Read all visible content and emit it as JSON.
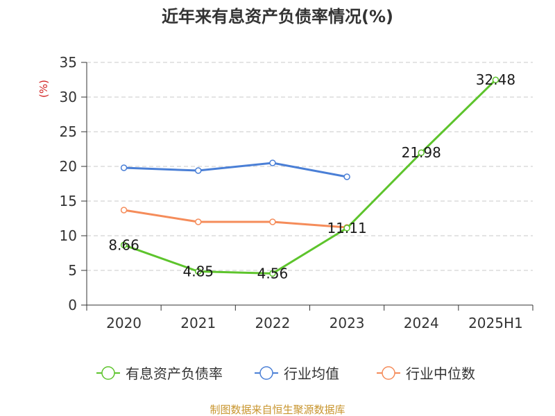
{
  "chart_data": {
    "type": "line",
    "title": "近年来有息资产负债率情况(%)",
    "ylabel": "(%)",
    "xlabel": "",
    "categories": [
      "2020",
      "2021",
      "2022",
      "2023",
      "2024",
      "2025H1"
    ],
    "ylim": [
      0,
      35
    ],
    "yticks": [
      0,
      5,
      10,
      15,
      20,
      25,
      30,
      35
    ],
    "grid": true,
    "legend_position": "bottom",
    "series": [
      {
        "name": "有息资产负债率",
        "color": "#5dc42c",
        "values": [
          8.66,
          4.85,
          4.56,
          11.11,
          21.98,
          32.48
        ],
        "labels": [
          "8.66",
          "4.85",
          "4.56",
          "11.11",
          "21.98",
          "32.48"
        ]
      },
      {
        "name": "行业均值",
        "color": "#4a7fd6",
        "values": [
          19.8,
          19.4,
          20.5,
          18.5,
          null,
          null
        ]
      },
      {
        "name": "行业中位数",
        "color": "#f58c5a",
        "values": [
          13.7,
          12.0,
          12.0,
          11.2,
          null,
          null
        ]
      }
    ],
    "source": "制图数据来自恒生聚源数据库"
  }
}
